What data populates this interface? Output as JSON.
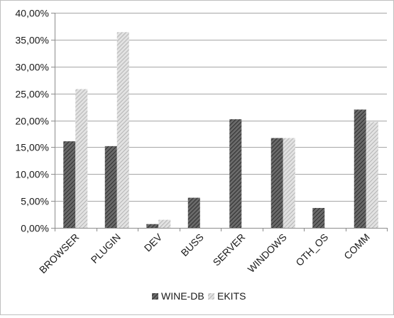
{
  "chart_data": {
    "type": "bar",
    "title": "",
    "xlabel": "",
    "ylabel": "",
    "categories": [
      "BROWSER",
      "PLUGIN",
      "DEV",
      "BUSS",
      "SERVER",
      "WINDOWS",
      "OTH_OS",
      "COMM"
    ],
    "series": [
      {
        "name": "WINE-DB",
        "color": "#555555",
        "pattern": "dark-hatch",
        "values": [
          16.1,
          15.2,
          0.7,
          5.6,
          20.2,
          16.7,
          3.7,
          22.0
        ]
      },
      {
        "name": "EKITS",
        "color": "#c8c8c8",
        "pattern": "light-hatch",
        "values": [
          25.8,
          36.4,
          1.5,
          0.0,
          0.0,
          16.7,
          0.0,
          19.7
        ]
      }
    ],
    "ylim": [
      0,
      40
    ],
    "yticks": [
      0,
      5,
      10,
      15,
      20,
      25,
      30,
      35,
      40
    ],
    "ytick_labels": [
      "0,00%",
      "5,00%",
      "10,00%",
      "15,00%",
      "20,00%",
      "25,00%",
      "30,00%",
      "35,00%",
      "40,00%"
    ],
    "grid": true,
    "legend": "bottom"
  }
}
